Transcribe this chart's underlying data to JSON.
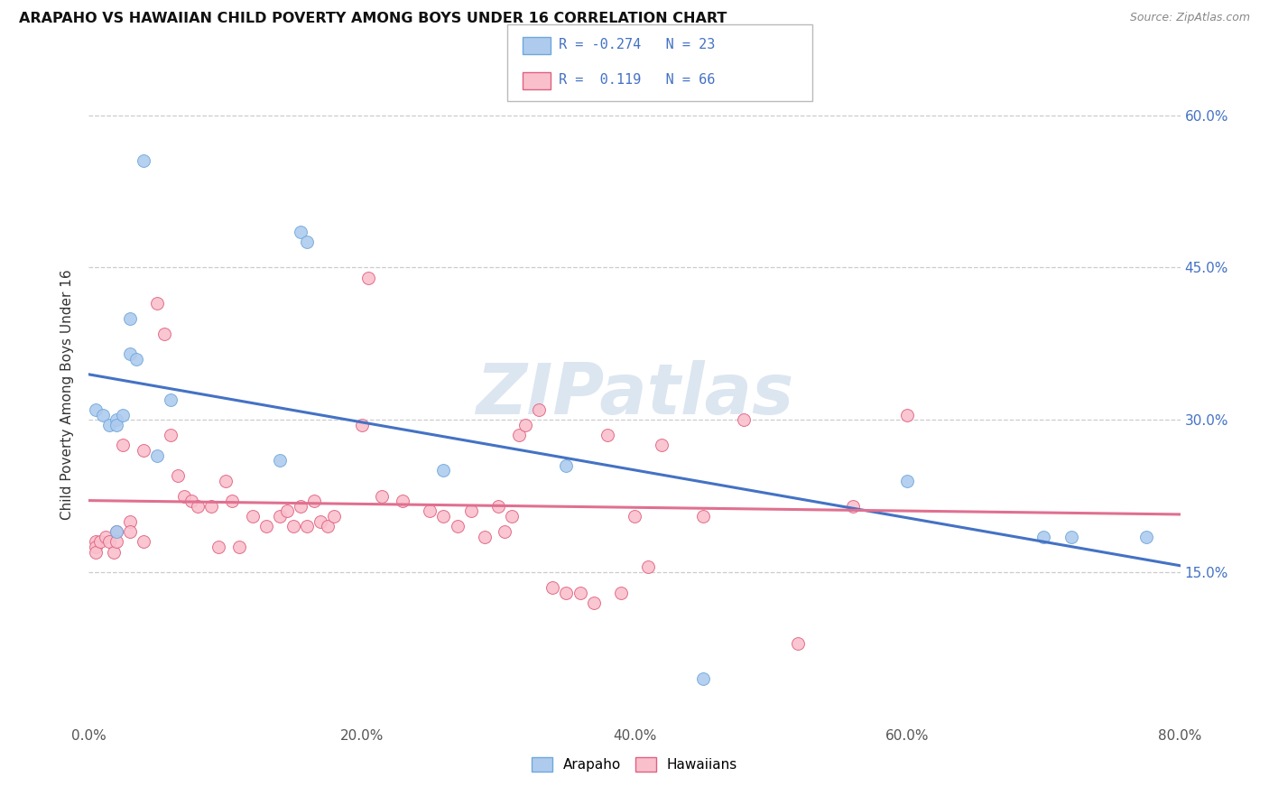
{
  "title": "ARAPAHO VS HAWAIIAN CHILD POVERTY AMONG BOYS UNDER 16 CORRELATION CHART",
  "source": "Source: ZipAtlas.com",
  "ylabel": "Child Poverty Among Boys Under 16",
  "xlim": [
    0.0,
    0.8
  ],
  "ylim": [
    0.0,
    0.65
  ],
  "grid_color": "#cccccc",
  "background_color": "#ffffff",
  "arapaho_color": "#aecbee",
  "hawaiian_color": "#f9c0cc",
  "arapaho_edge_color": "#6fa8dc",
  "hawaiian_edge_color": "#e06080",
  "arapaho_line_color": "#4472c4",
  "hawaiian_line_color": "#e07090",
  "legend_line1": "R = -0.274   N = 23",
  "legend_line2": "R =  0.119   N = 66",
  "arapaho_x": [
    0.005,
    0.01,
    0.015,
    0.02,
    0.02,
    0.02,
    0.025,
    0.03,
    0.03,
    0.035,
    0.04,
    0.05,
    0.06,
    0.14,
    0.155,
    0.16,
    0.26,
    0.35,
    0.45,
    0.6,
    0.7,
    0.72,
    0.775
  ],
  "arapaho_y": [
    0.31,
    0.305,
    0.295,
    0.3,
    0.295,
    0.19,
    0.305,
    0.4,
    0.365,
    0.36,
    0.555,
    0.265,
    0.32,
    0.26,
    0.485,
    0.475,
    0.25,
    0.255,
    0.045,
    0.24,
    0.185,
    0.185,
    0.185
  ],
  "hawaiian_x": [
    0.005,
    0.005,
    0.005,
    0.008,
    0.012,
    0.015,
    0.018,
    0.02,
    0.02,
    0.025,
    0.03,
    0.03,
    0.04,
    0.04,
    0.05,
    0.055,
    0.06,
    0.065,
    0.07,
    0.075,
    0.08,
    0.09,
    0.095,
    0.1,
    0.105,
    0.11,
    0.12,
    0.13,
    0.14,
    0.145,
    0.15,
    0.155,
    0.16,
    0.165,
    0.17,
    0.175,
    0.18,
    0.2,
    0.205,
    0.215,
    0.23,
    0.25,
    0.26,
    0.27,
    0.28,
    0.29,
    0.3,
    0.305,
    0.31,
    0.315,
    0.32,
    0.33,
    0.34,
    0.35,
    0.36,
    0.37,
    0.38,
    0.39,
    0.4,
    0.41,
    0.42,
    0.45,
    0.48,
    0.52,
    0.56,
    0.6
  ],
  "hawaiian_y": [
    0.18,
    0.175,
    0.17,
    0.18,
    0.185,
    0.18,
    0.17,
    0.19,
    0.18,
    0.275,
    0.2,
    0.19,
    0.27,
    0.18,
    0.415,
    0.385,
    0.285,
    0.245,
    0.225,
    0.22,
    0.215,
    0.215,
    0.175,
    0.24,
    0.22,
    0.175,
    0.205,
    0.195,
    0.205,
    0.21,
    0.195,
    0.215,
    0.195,
    0.22,
    0.2,
    0.195,
    0.205,
    0.295,
    0.44,
    0.225,
    0.22,
    0.21,
    0.205,
    0.195,
    0.21,
    0.185,
    0.215,
    0.19,
    0.205,
    0.285,
    0.295,
    0.31,
    0.135,
    0.13,
    0.13,
    0.12,
    0.285,
    0.13,
    0.205,
    0.155,
    0.275,
    0.205,
    0.3,
    0.08,
    0.215,
    0.305
  ],
  "watermark_text": "ZIPatlas",
  "watermark_color": "#dce6f0",
  "marker_size": 100,
  "ytick_vals": [
    0.15,
    0.3,
    0.45,
    0.6
  ],
  "ytick_labels": [
    "15.0%",
    "30.0%",
    "45.0%",
    "60.0%"
  ],
  "xtick_vals": [
    0.0,
    0.2,
    0.4,
    0.6,
    0.8
  ],
  "xtick_labels": [
    "0.0%",
    "20.0%",
    "40.0%",
    "60.0%",
    "80.0%"
  ]
}
